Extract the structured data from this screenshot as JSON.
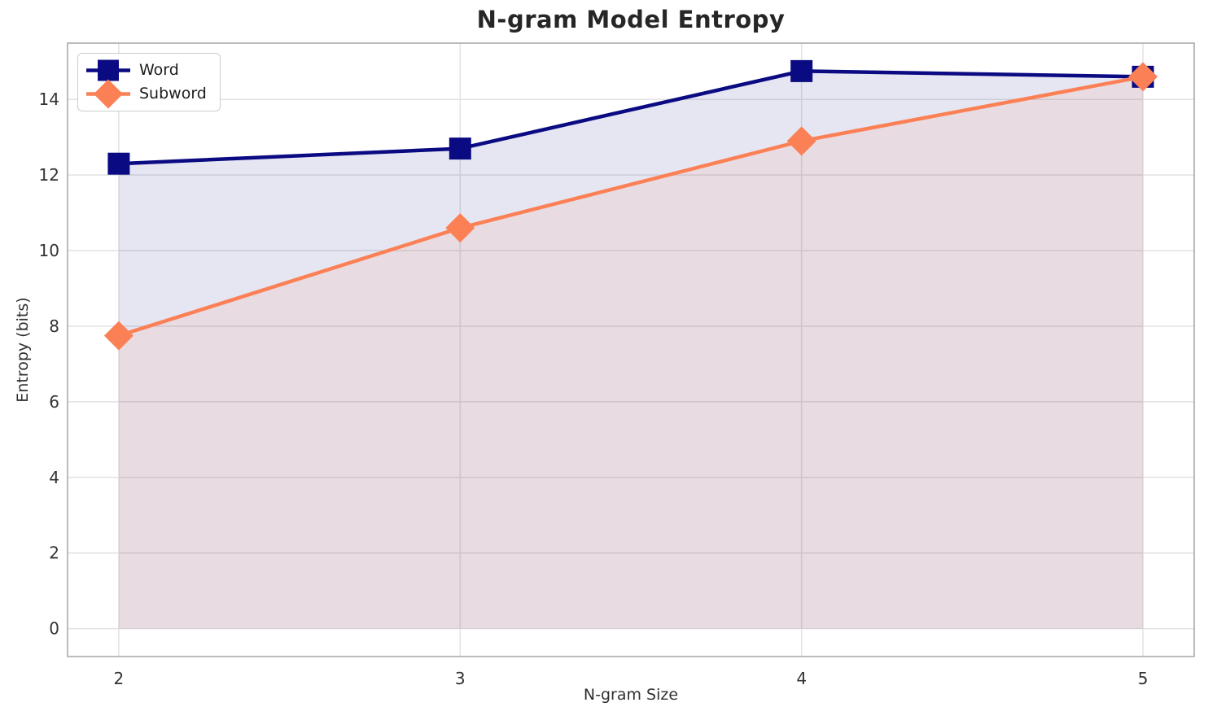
{
  "chart_data": {
    "type": "line",
    "title": "N-gram Model Entropy",
    "xlabel": "N-gram Size",
    "ylabel": "Entropy (bits)",
    "x": [
      2,
      3,
      4,
      5
    ],
    "series": [
      {
        "name": "Word",
        "values": [
          12.3,
          12.7,
          14.75,
          14.6
        ],
        "color": "#0a0a82",
        "marker": "square"
      },
      {
        "name": "Subword",
        "values": [
          7.75,
          10.6,
          12.9,
          14.6
        ],
        "color": "#fc8055",
        "marker": "diamond"
      }
    ],
    "fill_to_zero": true,
    "fill_alpha": 0.1,
    "xticks": [
      2,
      3,
      4,
      5
    ],
    "yticks": [
      0,
      2,
      4,
      6,
      8,
      10,
      12,
      14
    ],
    "xlim": [
      1.85,
      5.15
    ],
    "ylim": [
      -0.74,
      15.49
    ],
    "grid": true,
    "legend_position": "upper-left",
    "colors": {
      "grid": "#e2e2e2",
      "spine": "#ababab",
      "tick_label": "#333333",
      "title": "#262626"
    }
  }
}
